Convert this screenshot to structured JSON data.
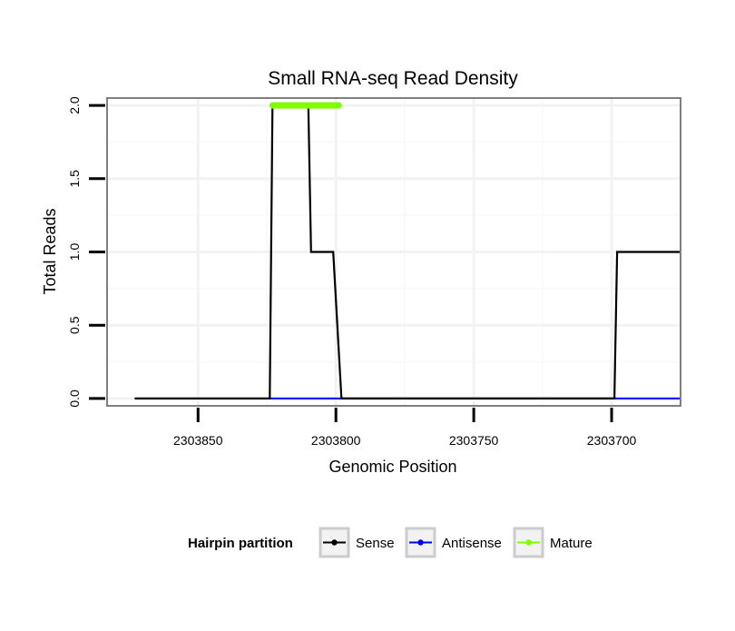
{
  "chart_data": {
    "type": "line",
    "title": "Small RNA-seq Read Density",
    "xlabel": "Genomic Position",
    "ylabel": "Total Reads",
    "xlim": [
      2303883,
      2303675
    ],
    "ylim": [
      -0.05,
      2.05
    ],
    "x_ticks": [
      2303850,
      2303800,
      2303750,
      2303700
    ],
    "x_tick_labels": [
      "2303850",
      "2303800",
      "2303750",
      "2303700"
    ],
    "y_ticks": [
      0,
      0.5,
      1,
      1.5,
      2
    ],
    "y_tick_labels": [
      "0.0",
      "0.5",
      "1.0",
      "1.5",
      "2.0"
    ],
    "grid": true,
    "series": [
      {
        "name": "Sense",
        "color": "#000000",
        "x": [
          2303873,
          2303824,
          2303823,
          2303810,
          2303809,
          2303801,
          2303798,
          2303699,
          2303698,
          2303675
        ],
        "y": [
          0,
          0,
          2,
          2,
          1,
          1,
          0,
          0,
          1,
          1
        ]
      },
      {
        "name": "Antisense",
        "color": "#0000ff",
        "x": [
          2303824,
          2303675
        ],
        "y": [
          0,
          0
        ]
      },
      {
        "name": "Mature",
        "color": "#7fff00",
        "x": [
          2303823,
          2303799
        ],
        "y": [
          2,
          2
        ]
      }
    ]
  },
  "legend": {
    "title": "Hairpin partition",
    "items": [
      {
        "label": "Sense",
        "color": "#000000"
      },
      {
        "label": "Antisense",
        "color": "#0000ff"
      },
      {
        "label": "Mature",
        "color": "#7fff00"
      }
    ]
  }
}
